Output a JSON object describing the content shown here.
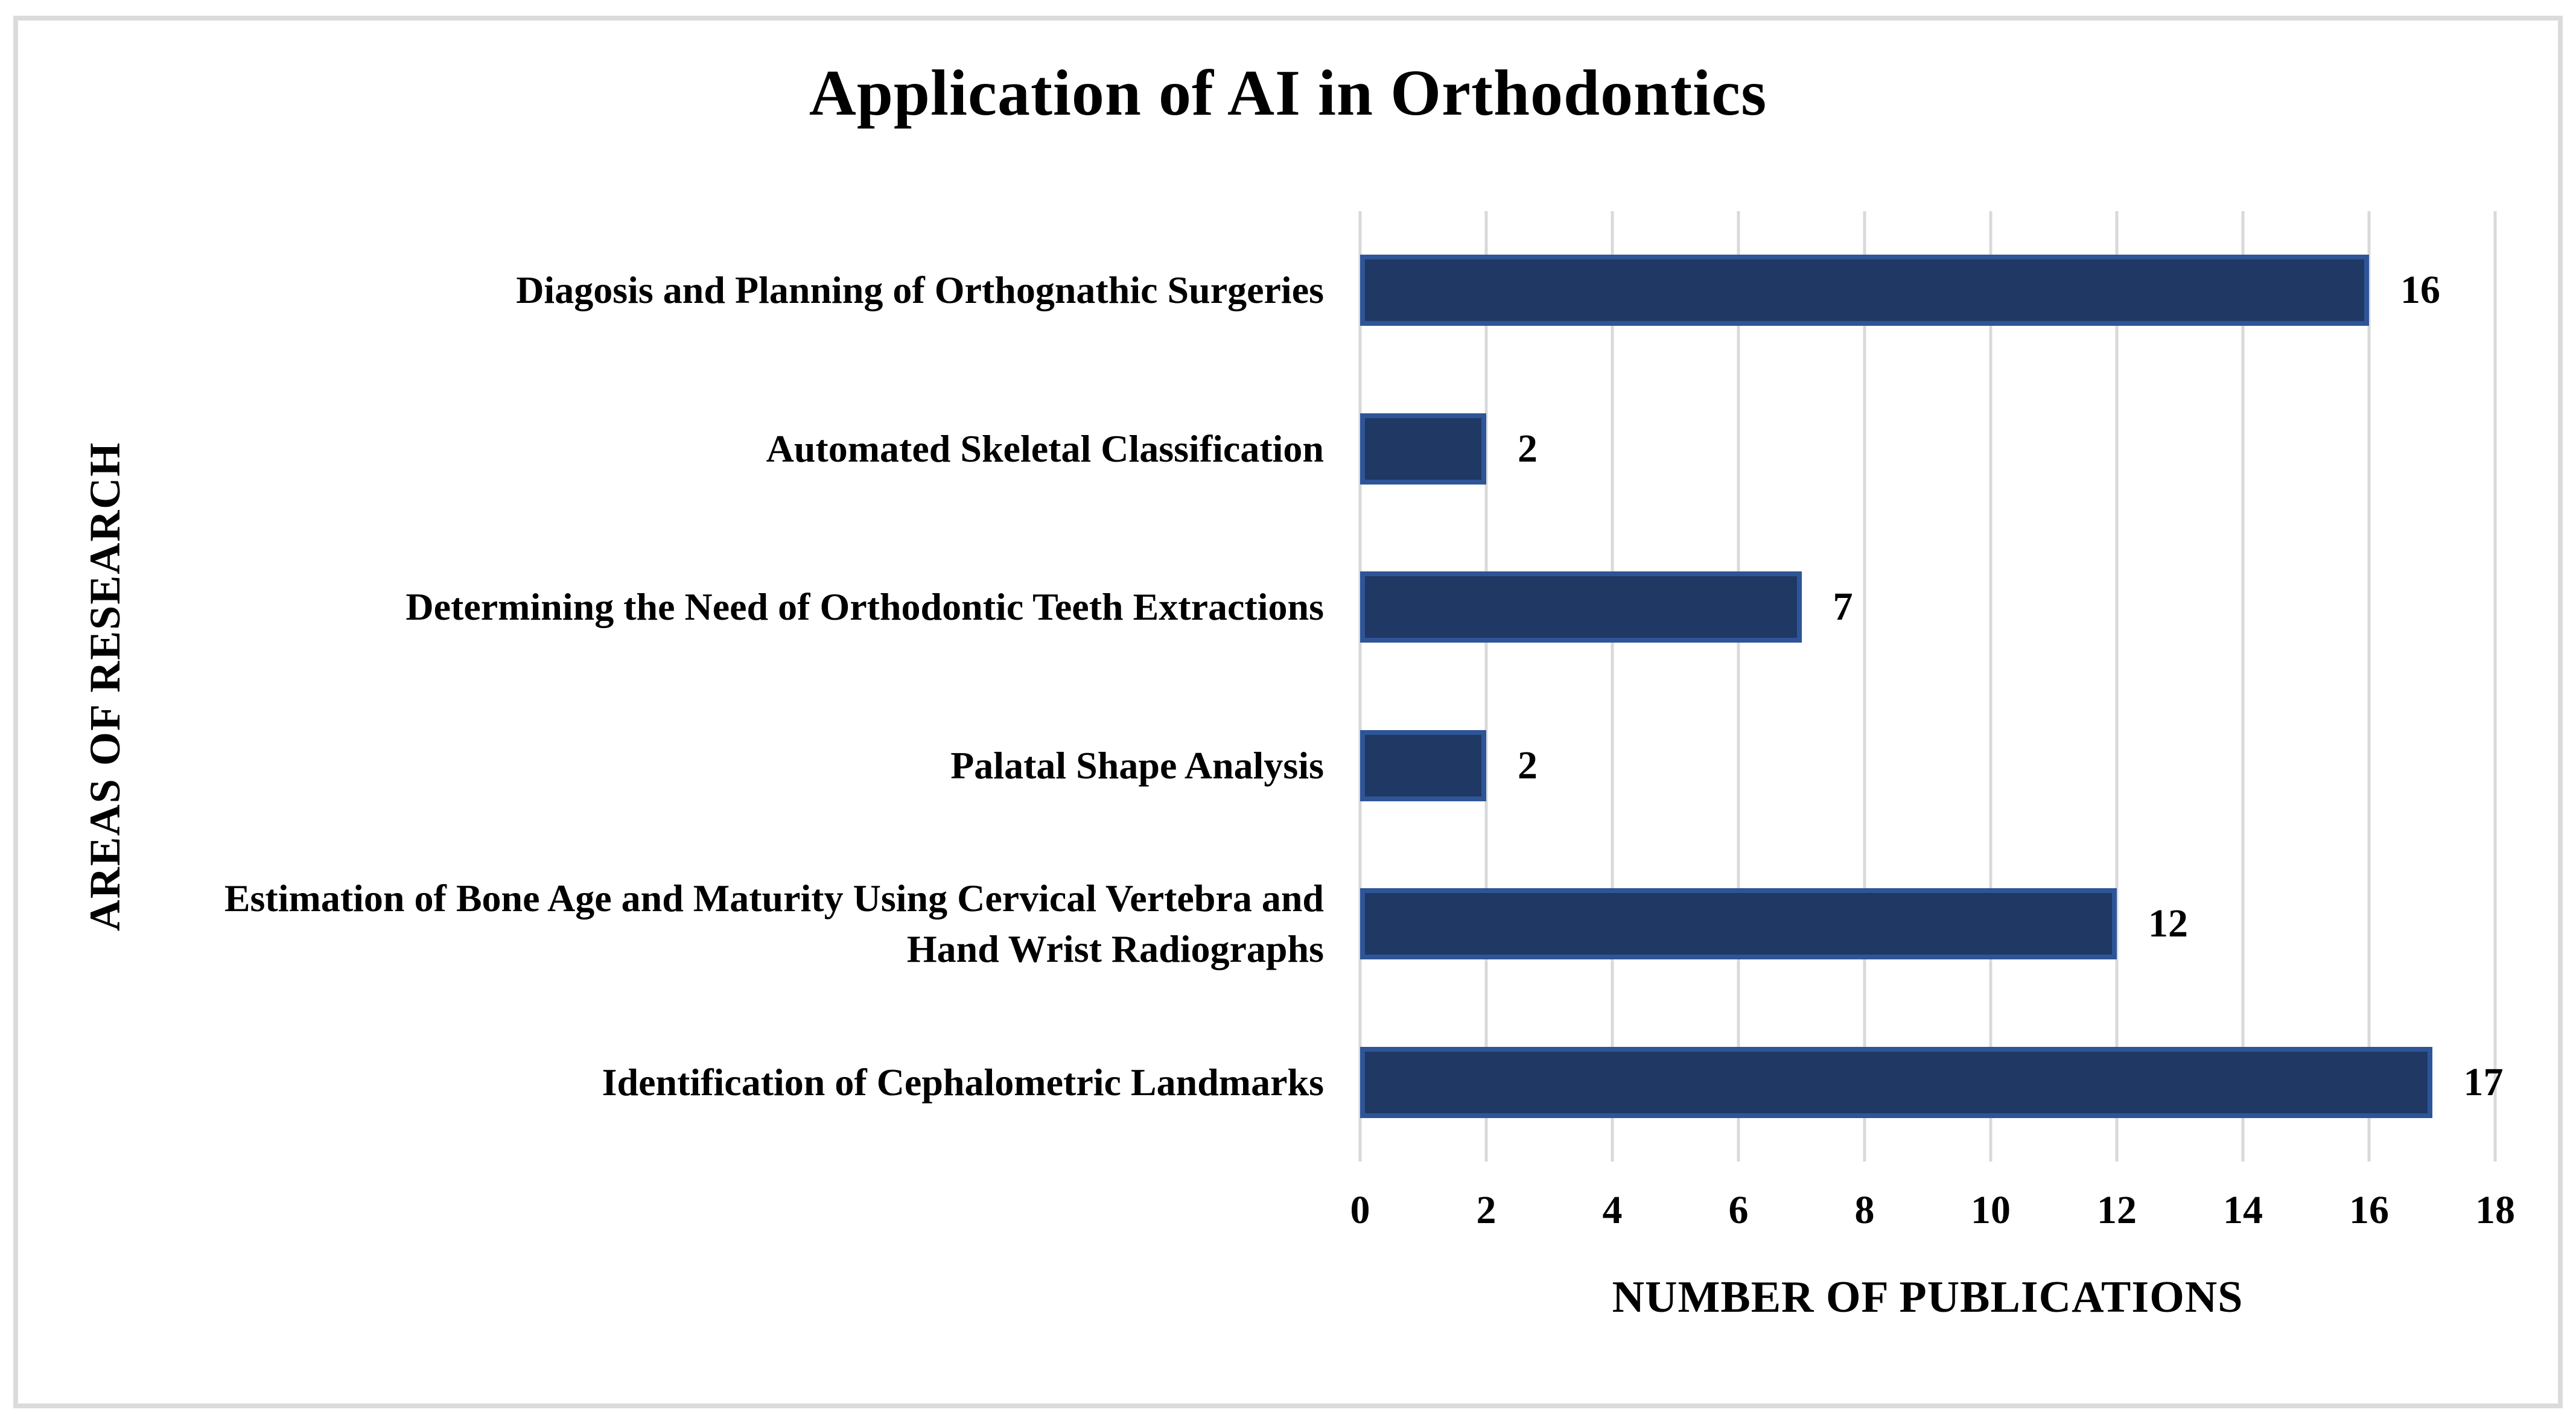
{
  "chart_data": {
    "type": "bar",
    "orientation": "horizontal",
    "title": "Application of AI in Orthodontics",
    "xlabel": "NUMBER OF PUBLICATIONS",
    "ylabel": "AREAS OF RESEARCH",
    "categories": [
      "Diagosis and Planning of Orthognathic Surgeries",
      "Automated Skeletal Classification",
      "Determining the Need of Orthodontic Teeth Extractions",
      "Palatal Shape Analysis",
      "Estimation of Bone Age and Maturity Using Cervical Vertebra and Hand Wrist Radiographs",
      "Identification of Cephalometric Landmarks"
    ],
    "values": [
      16,
      2,
      7,
      2,
      12,
      17
    ],
    "data_labels": [
      "16",
      "2",
      "7",
      "2",
      "12",
      "17"
    ],
    "xlim": [
      0,
      18
    ],
    "xticks": [
      0,
      2,
      4,
      6,
      8,
      10,
      12,
      14,
      16,
      18
    ],
    "grid": "vertical-only",
    "legend": "none",
    "colors": {
      "bar_fill": "#1F3864",
      "bar_border": "#2E5597",
      "gridline": "#D9D9D9",
      "frame_border": "#DBDBDB",
      "text": "#000000",
      "background": "#FFFFFF"
    }
  }
}
